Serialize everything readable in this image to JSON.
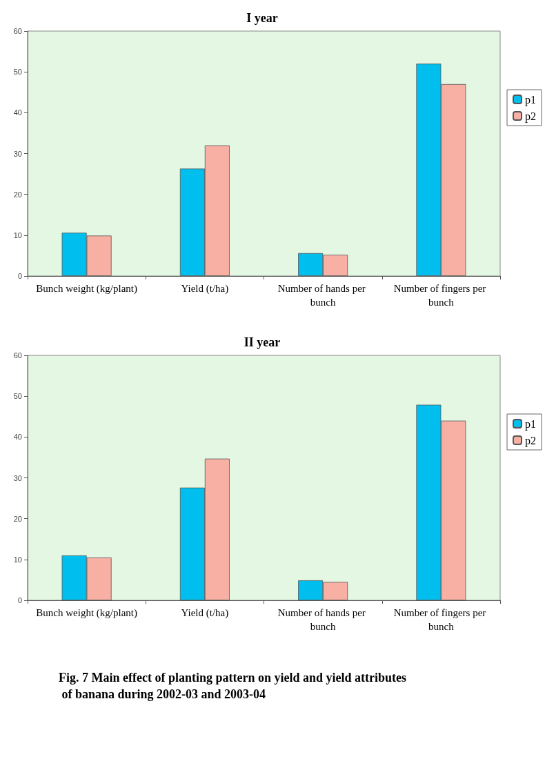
{
  "chart_data": [
    {
      "type": "bar",
      "title": "I year",
      "categories": [
        "Bunch weight (kg/plant)",
        "Yield (t/ha)",
        "Number of hands per bunch",
        "Number of fingers per bunch"
      ],
      "series": [
        {
          "name": "p1",
          "color": "#00bfef",
          "values": [
            10.6,
            26.3,
            5.6,
            52.0
          ]
        },
        {
          "name": "p2",
          "color": "#f9b0a4",
          "values": [
            9.9,
            32.0,
            5.2,
            47.0
          ]
        }
      ],
      "ylim": [
        0,
        60
      ],
      "yticks": [
        0,
        10,
        20,
        30,
        40,
        50,
        60
      ],
      "grid": false,
      "legend": "right"
    },
    {
      "type": "bar",
      "title": "II year",
      "categories": [
        "Bunch weight (kg/plant)",
        "Yield (t/ha)",
        "Number of hands per bunch",
        "Number of fingers per bunch"
      ],
      "series": [
        {
          "name": "p1",
          "color": "#00bfef",
          "values": [
            11.0,
            27.6,
            4.9,
            47.9
          ]
        },
        {
          "name": "p2",
          "color": "#f9b0a4",
          "values": [
            10.5,
            34.7,
            4.5,
            44.0
          ]
        }
      ],
      "ylim": [
        0,
        60
      ],
      "yticks": [
        0,
        10,
        20,
        30,
        40,
        50,
        60
      ],
      "grid": false,
      "legend": "right",
      "annotations": [
        "Fig. 7 Main effect of planting pattern on yield and yield attributes of banana during 2002-03 and 2003-04"
      ]
    }
  ]
}
